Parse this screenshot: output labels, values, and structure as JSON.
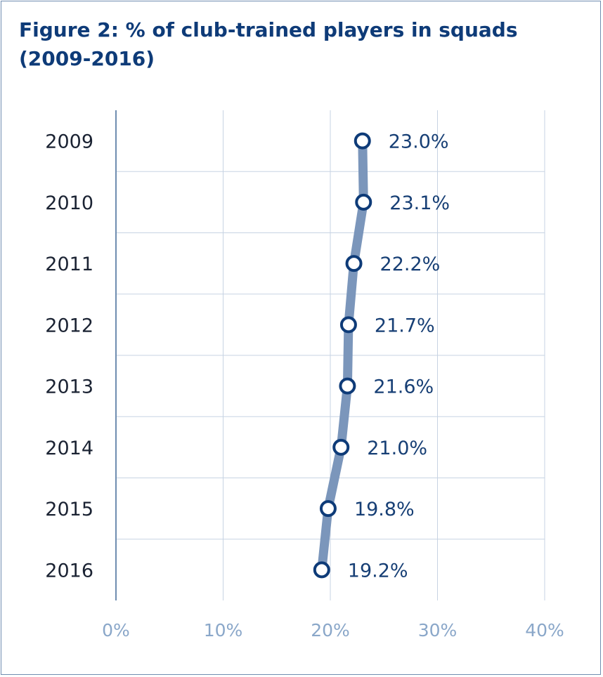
{
  "title": "Figure 2: % of club-trained players in squads (2009-2016)",
  "colors": {
    "line": "#7b96bb",
    "marker_stroke": "#0e3b78",
    "marker_fill": "#ffffff",
    "grid": "#c7d3e3",
    "axis": "#6f8db0",
    "title": "#0e3b78"
  },
  "chart_data": {
    "type": "line",
    "orientation": "vertical-categories",
    "title": "Figure 2: % of club-trained players in squads (2009-2016)",
    "categories": [
      "2009",
      "2010",
      "2011",
      "2012",
      "2013",
      "2014",
      "2015",
      "2016"
    ],
    "values": [
      23.0,
      23.1,
      22.2,
      21.7,
      21.6,
      21.0,
      19.8,
      19.2
    ],
    "data_labels": [
      "23.0%",
      "23.1%",
      "22.2%",
      "21.7%",
      "21.6%",
      "21.0%",
      "19.8%",
      "19.2%"
    ],
    "x_ticks": [
      0,
      10,
      20,
      30,
      40
    ],
    "x_tick_labels": [
      "0%",
      "10%",
      "20%",
      "30%",
      "40%"
    ],
    "xlim": [
      0,
      40
    ],
    "grid": true,
    "legend": "none"
  }
}
